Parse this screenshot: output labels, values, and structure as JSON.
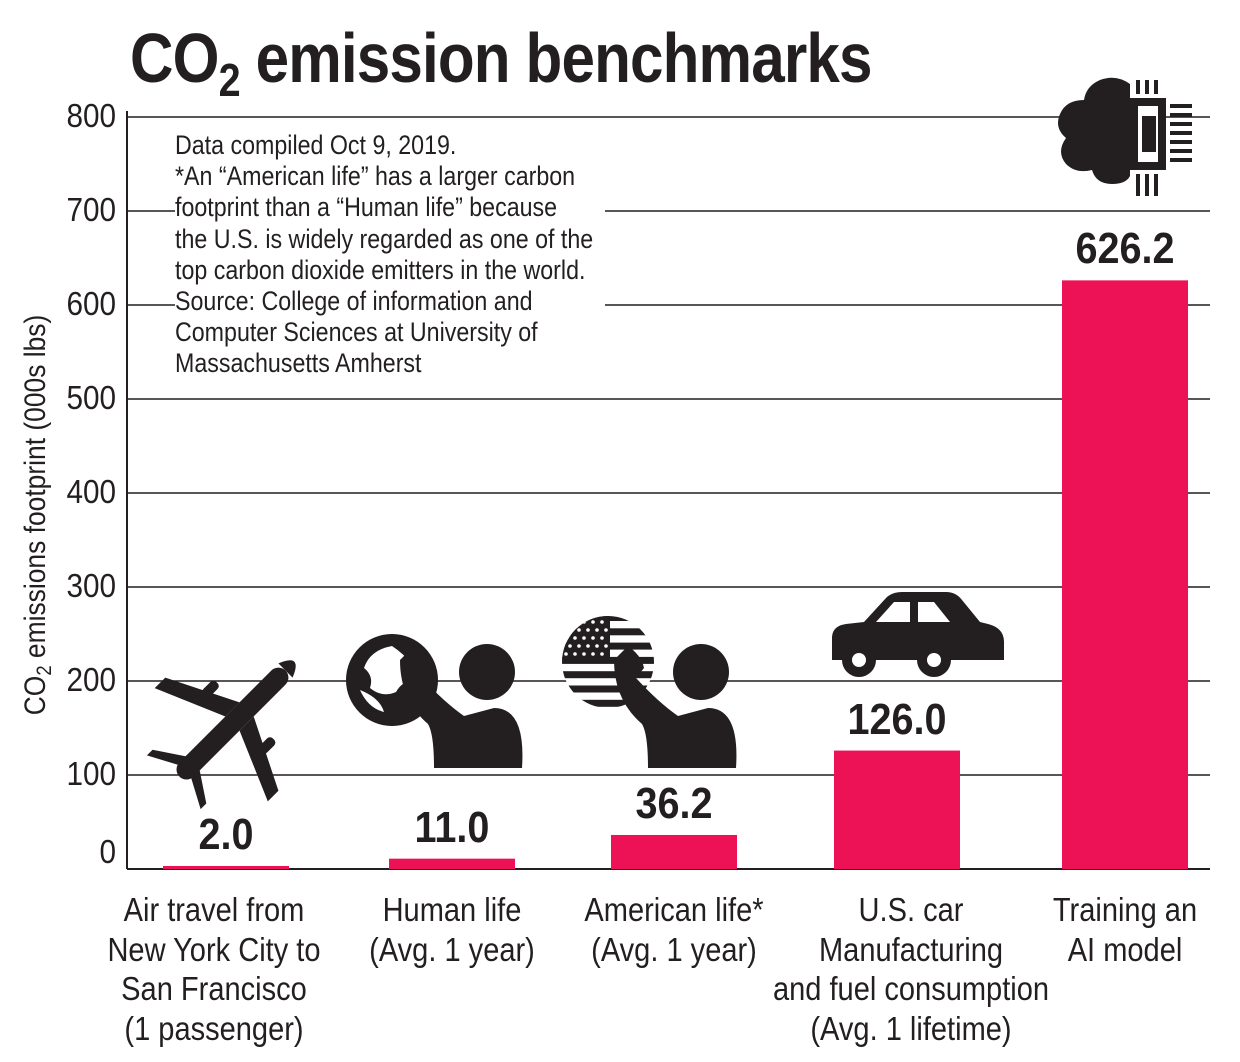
{
  "title": {
    "prefix": "CO",
    "sub": "2",
    "suffix": " emission benchmarks"
  },
  "note": [
    "Data compiled Oct 9, 2019.",
    "*An “American life” has a larger carbon",
    "footprint than a “Human life” because",
    "the U.S. is widely regarded as one of the",
    "top carbon dioxide emitters in the world.",
    "Source: College of information and",
    "Computer Sciences at University of",
    "Massachusetts Amherst"
  ],
  "colors": {
    "bar": "#ed1156",
    "grid": "#231f20",
    "text": "#231f20"
  },
  "chart_data": {
    "type": "bar",
    "title": "CO2 emission benchmarks",
    "ylabel": {
      "prefix": "CO",
      "sub": "2",
      "suffix": " emissions footprint (000s lbs)"
    },
    "ylim": [
      0,
      800
    ],
    "yticks": [
      0,
      100,
      200,
      300,
      400,
      500,
      600,
      700,
      800
    ],
    "grid": true,
    "categories": [
      [
        "Air travel from",
        "New York City to",
        "San Francisco",
        "(1 passenger)"
      ],
      [
        "Human life",
        "(Avg. 1 year)"
      ],
      [
        "American life*",
        "(Avg. 1 year)"
      ],
      [
        "U.S. car",
        "Manufacturing",
        "and fuel consumption",
        "(Avg. 1 lifetime)"
      ],
      [
        "Training an",
        "AI model"
      ]
    ],
    "values": [
      2.0,
      11.0,
      36.2,
      126.0,
      626.2
    ],
    "value_labels": [
      "2.0",
      "11.0",
      "36.2",
      "126.0",
      "626.2"
    ],
    "icons": [
      "airplane-icon",
      "person-globe-icon",
      "person-us-flag-icon",
      "car-icon",
      "cloud-chip-icon"
    ]
  }
}
